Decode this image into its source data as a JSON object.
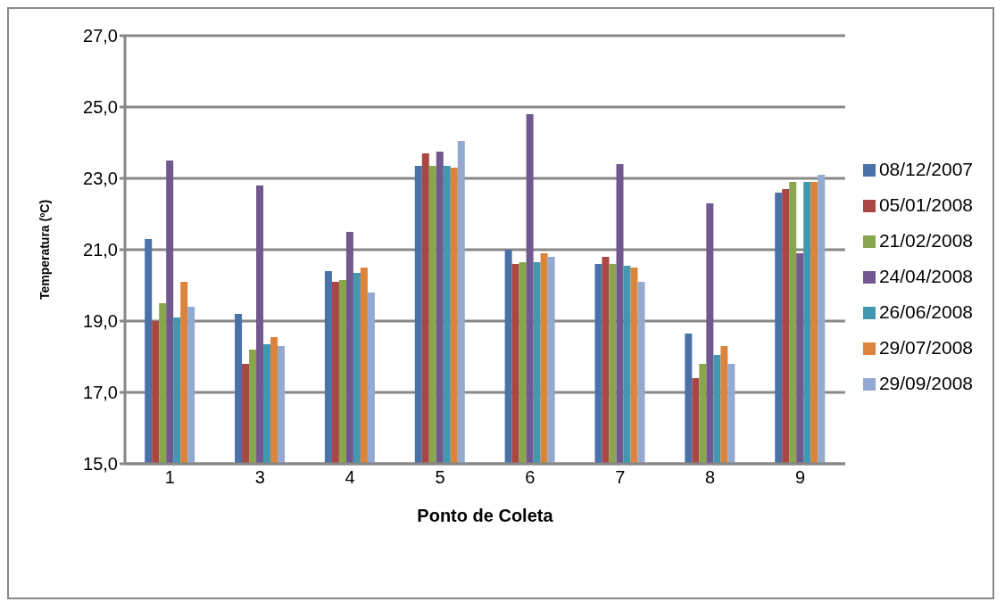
{
  "chart_data": {
    "type": "bar",
    "xlabel": "Ponto de Coleta",
    "ylabel": "Temperatura (ºC)",
    "categories": [
      "1",
      "3",
      "4",
      "5",
      "6",
      "7",
      "8",
      "9"
    ],
    "series": [
      {
        "name": "08/12/2007",
        "color": "#4a72a8",
        "values": [
          21.3,
          19.2,
          20.4,
          23.35,
          21.0,
          20.6,
          18.65,
          22.6
        ]
      },
      {
        "name": "05/01/2008",
        "color": "#aa4643",
        "values": [
          19.0,
          17.8,
          20.1,
          23.7,
          20.6,
          20.8,
          17.4,
          22.7
        ]
      },
      {
        "name": "21/02/2008",
        "color": "#89a54e",
        "values": [
          19.5,
          18.2,
          20.15,
          23.35,
          20.65,
          20.6,
          17.8,
          22.9
        ]
      },
      {
        "name": "24/04/2008",
        "color": "#71588f",
        "values": [
          23.5,
          22.8,
          21.5,
          23.75,
          24.8,
          23.4,
          22.3,
          20.9
        ]
      },
      {
        "name": "26/06/2008",
        "color": "#4198af",
        "values": [
          19.1,
          18.35,
          20.35,
          23.35,
          20.65,
          20.55,
          18.05,
          22.9
        ]
      },
      {
        "name": "29/07/2008",
        "color": "#db843d",
        "values": [
          20.1,
          18.55,
          20.5,
          23.3,
          20.9,
          20.5,
          18.3,
          22.9
        ]
      },
      {
        "name": "29/09/2008",
        "color": "#93a9cf",
        "values": [
          19.4,
          18.3,
          19.8,
          24.05,
          20.8,
          20.1,
          17.8,
          23.1
        ]
      }
    ],
    "ylim": [
      15,
      27
    ],
    "yticks": [
      {
        "value": 15,
        "label": "15,0"
      },
      {
        "value": 17,
        "label": "17,0"
      },
      {
        "value": 19,
        "label": "19,0"
      },
      {
        "value": 21,
        "label": "21,0"
      },
      {
        "value": 23,
        "label": "23,0"
      },
      {
        "value": 25,
        "label": "25,0"
      },
      {
        "value": 27,
        "label": "27,0"
      }
    ],
    "grid": "y",
    "legend": "right"
  }
}
